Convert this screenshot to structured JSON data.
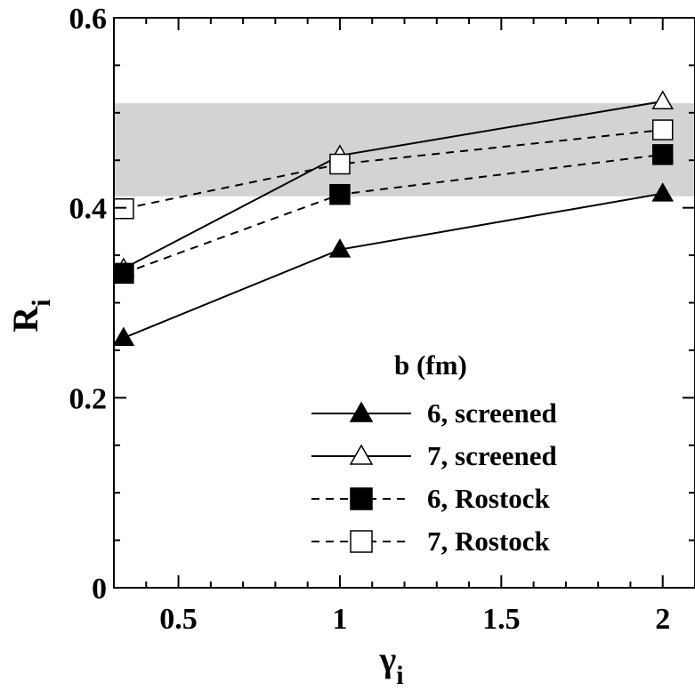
{
  "chart_data": {
    "type": "line",
    "xlabel": "γ",
    "xlabel_sub": "i",
    "ylabel": "R",
    "ylabel_sub": "i",
    "xlim": [
      0.3,
      2.1
    ],
    "ylim": [
      0,
      0.6
    ],
    "x_major_ticks": [
      0.5,
      1,
      1.5,
      2
    ],
    "x_tick_labels": [
      "0.5",
      "1",
      "1.5",
      "2"
    ],
    "y_major_ticks": [
      0,
      0.2,
      0.4,
      0.6
    ],
    "y_tick_labels": [
      "0",
      "0.2",
      "0.4",
      "0.6"
    ],
    "band": {
      "y_low": 0.412,
      "y_high": 0.51,
      "color": "#d3d3d3"
    },
    "legend_title": "b (fm)",
    "legend_position": "bottom-right",
    "grid": false,
    "series": [
      {
        "name": "6, screened",
        "marker": "triangle-filled",
        "dash": "solid",
        "x": [
          0.33,
          1,
          2
        ],
        "y": [
          0.263,
          0.356,
          0.415
        ]
      },
      {
        "name": "7, screened",
        "marker": "triangle-open",
        "dash": "solid",
        "x": [
          0.33,
          1,
          2
        ],
        "y": [
          0.336,
          0.455,
          0.512
        ]
      },
      {
        "name": "6, Rostock",
        "marker": "square-filled",
        "dash": "dashed",
        "x": [
          0.33,
          1,
          2
        ],
        "y": [
          0.331,
          0.414,
          0.456
        ]
      },
      {
        "name": "7, Rostock",
        "marker": "square-open",
        "dash": "dashed",
        "x": [
          0.33,
          1,
          2
        ],
        "y": [
          0.399,
          0.446,
          0.482
        ]
      }
    ]
  }
}
